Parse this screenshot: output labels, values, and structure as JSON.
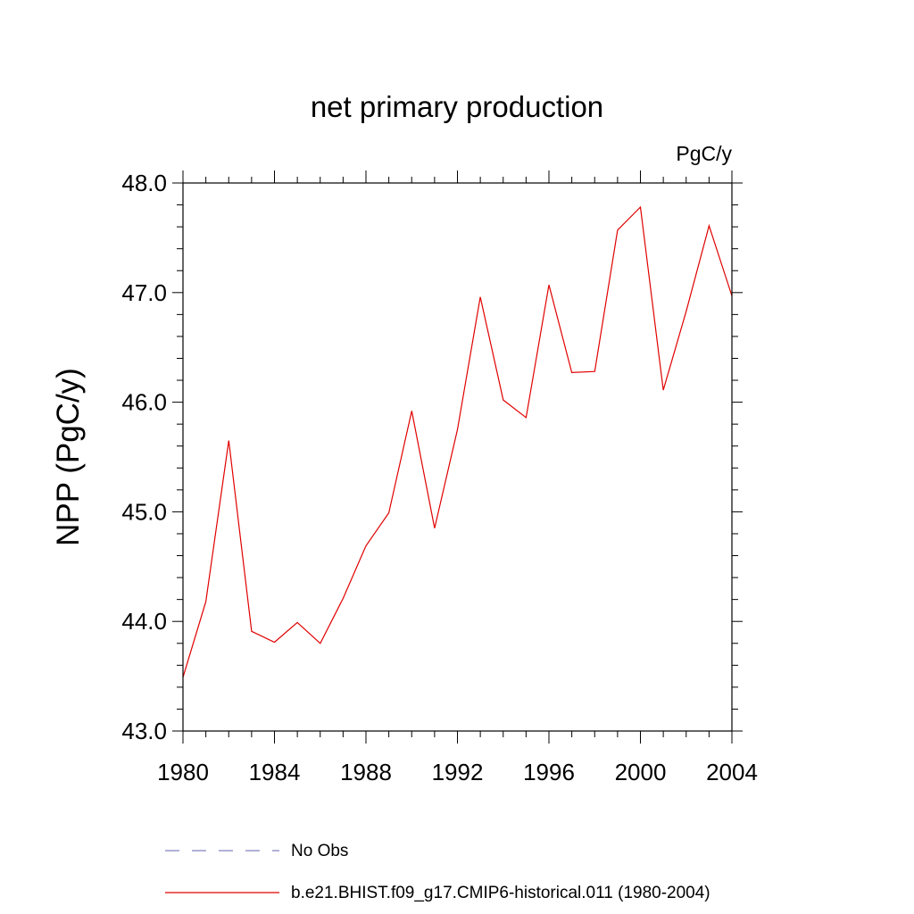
{
  "chart_data": {
    "type": "line",
    "title": "net primary production",
    "units": "PgC/y",
    "ylabel": "NPP  (PgC/y)",
    "xlabel": "",
    "xlim": [
      1980,
      2004
    ],
    "ylim": [
      43.0,
      48.0
    ],
    "x_ticks": [
      "1980",
      "1984",
      "1988",
      "1992",
      "1996",
      "2000",
      "2004"
    ],
    "y_ticks": [
      "43.0",
      "44.0",
      "45.0",
      "46.0",
      "47.0",
      "48.0"
    ],
    "grid": false,
    "legend_position": "bottom",
    "series": [
      {
        "name": "b.e21.BHIST.f09_g17.CMIP6-historical.011 (1980-2004)",
        "color": "#e00000",
        "style": "solid",
        "x": [
          1980,
          1981,
          1982,
          1983,
          1984,
          1985,
          1986,
          1987,
          1988,
          1989,
          1990,
          1991,
          1992,
          1993,
          1994,
          1995,
          1996,
          1997,
          1998,
          1999,
          2000,
          2001,
          2002,
          2003,
          2004
        ],
        "y": [
          43.49,
          44.18,
          45.65,
          43.91,
          43.81,
          43.99,
          43.8,
          44.21,
          44.69,
          44.99,
          45.92,
          44.85,
          45.75,
          46.96,
          46.02,
          45.86,
          47.07,
          46.27,
          46.28,
          47.57,
          47.78,
          46.11,
          46.83,
          47.61,
          46.97
        ]
      }
    ],
    "legend": [
      {
        "label": "No Obs",
        "color": "#8080c0",
        "style": "dashed"
      },
      {
        "label": "b.e21.BHIST.f09_g17.CMIP6-historical.011 (1980-2004)",
        "color": "#e00000",
        "style": "solid"
      }
    ]
  }
}
